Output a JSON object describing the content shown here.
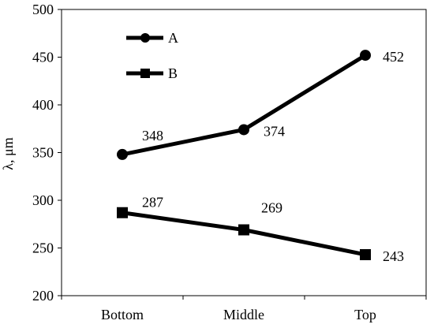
{
  "chart_data": {
    "type": "line",
    "title": "",
    "xlabel": "",
    "ylabel": "λ, μm",
    "categories": [
      "Bottom",
      "Middle",
      "Top"
    ],
    "ylim": [
      200,
      500
    ],
    "yticks": [
      200,
      250,
      300,
      350,
      400,
      450,
      500
    ],
    "grid": false,
    "legend_position": "top-left",
    "series": [
      {
        "name": "A",
        "marker": "circle",
        "color": "#000000",
        "values": [
          348,
          374,
          452
        ],
        "labels": [
          "348",
          "374",
          "452"
        ]
      },
      {
        "name": "B",
        "marker": "square",
        "color": "#000000",
        "values": [
          287,
          269,
          243
        ],
        "labels": [
          "287",
          "269",
          "243"
        ]
      }
    ]
  }
}
